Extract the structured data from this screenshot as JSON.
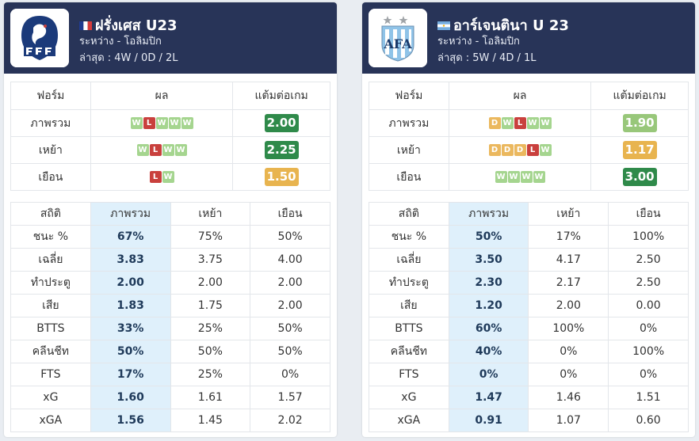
{
  "teams": [
    {
      "name": "ฝรั่งเศส U23",
      "flag_icon": "france-flag-icon",
      "logo_icon": "fff-crest-icon",
      "competition": "ระหว่าง - โอลิมปิก",
      "recent": "ล่าสุด : 4W / 0D / 2L",
      "form_headers": {
        "form": "ฟอร์ม",
        "result": "ผล",
        "ppg": "แต้มต่อเกม"
      },
      "form_rows": [
        {
          "label": "ภาพรวม",
          "results": [
            "W",
            "L",
            "W",
            "W",
            "W"
          ],
          "ppg": "2.00",
          "ppg_color": "#2f8a4a"
        },
        {
          "label": "เหย้า",
          "results": [
            "W",
            "L",
            "W",
            "W"
          ],
          "ppg": "2.25",
          "ppg_color": "#2f8a4a"
        },
        {
          "label": "เยือน",
          "results": [
            "L",
            "W"
          ],
          "ppg": "1.50",
          "ppg_color": "#e8b44f"
        }
      ],
      "stats_headers": [
        "สถิติ",
        "ภาพรวม",
        "เหย้า",
        "เยือน"
      ],
      "stats_rows": [
        [
          "ชนะ %",
          "67%",
          "75%",
          "50%"
        ],
        [
          "เฉลี่ย",
          "3.83",
          "3.75",
          "4.00"
        ],
        [
          "ทำประตู",
          "2.00",
          "2.00",
          "2.00"
        ],
        [
          "เสีย",
          "1.83",
          "1.75",
          "2.00"
        ],
        [
          "BTTS",
          "33%",
          "25%",
          "50%"
        ],
        [
          "คลีนชีท",
          "50%",
          "50%",
          "50%"
        ],
        [
          "FTS",
          "17%",
          "25%",
          "0%"
        ],
        [
          "xG",
          "1.60",
          "1.61",
          "1.57"
        ],
        [
          "xGA",
          "1.56",
          "1.45",
          "2.02"
        ]
      ]
    },
    {
      "name": "อาร์เจนตินา U 23",
      "flag_icon": "argentina-flag-icon",
      "logo_icon": "afa-crest-icon",
      "competition": "ระหว่าง - โอลิมปิก",
      "recent": "ล่าสุด : 5W / 4D / 1L",
      "form_headers": {
        "form": "ฟอร์ม",
        "result": "ผล",
        "ppg": "แต้มต่อเกม"
      },
      "form_rows": [
        {
          "label": "ภาพรวม",
          "results": [
            "D",
            "W",
            "L",
            "W",
            "W"
          ],
          "ppg": "1.90",
          "ppg_color": "#98c77a"
        },
        {
          "label": "เหย้า",
          "results": [
            "D",
            "D",
            "D",
            "L",
            "W"
          ],
          "ppg": "1.17",
          "ppg_color": "#e8b44f"
        },
        {
          "label": "เยือน",
          "results": [
            "W",
            "W",
            "W",
            "W"
          ],
          "ppg": "3.00",
          "ppg_color": "#2f8a4a"
        }
      ],
      "stats_headers": [
        "สถิติ",
        "ภาพรวม",
        "เหย้า",
        "เยือน"
      ],
      "stats_rows": [
        [
          "ชนะ %",
          "50%",
          "17%",
          "100%"
        ],
        [
          "เฉลี่ย",
          "3.50",
          "4.17",
          "2.50"
        ],
        [
          "ทำประตู",
          "2.30",
          "2.17",
          "2.50"
        ],
        [
          "เสีย",
          "1.20",
          "2.00",
          "0.00"
        ],
        [
          "BTTS",
          "60%",
          "100%",
          "0%"
        ],
        [
          "คลีนชีท",
          "40%",
          "0%",
          "100%"
        ],
        [
          "FTS",
          "0%",
          "0%",
          "0%"
        ],
        [
          "xG",
          "1.47",
          "1.46",
          "1.51"
        ],
        [
          "xGA",
          "0.91",
          "1.07",
          "0.60"
        ]
      ]
    }
  ],
  "colors": {
    "header_bg": "#283458",
    "win": "#a5d58f",
    "loss": "#c9403d",
    "draw": "#ebb85e",
    "highlight_col": "#dff0fb"
  }
}
